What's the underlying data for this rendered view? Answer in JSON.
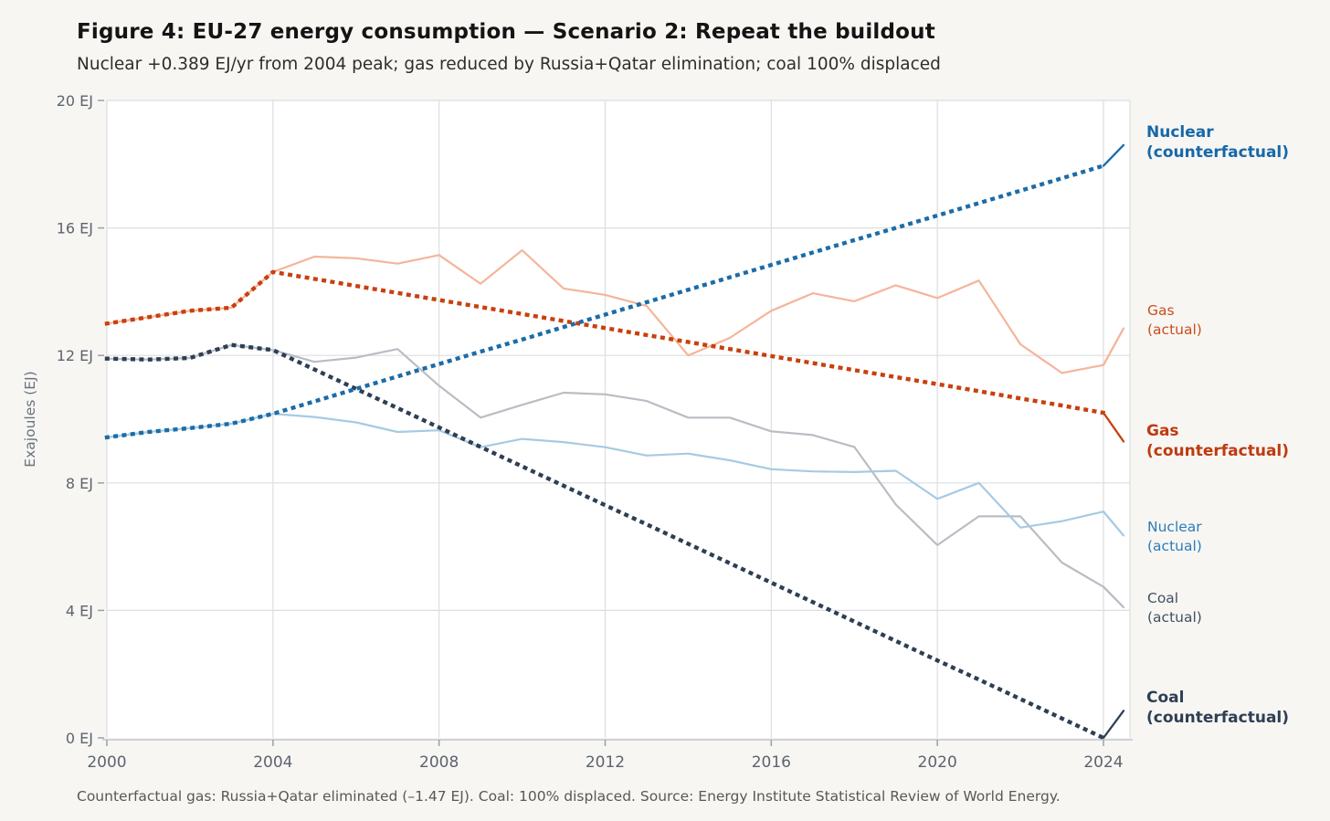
{
  "header": {
    "title": "Figure 4: EU-27 energy consumption — Scenario 2: Repeat the buildout",
    "subtitle": "Nuclear +0.389 EJ/yr from 2004 peak; gas reduced by Russia+Qatar elimination; coal 100% displaced"
  },
  "footer": {
    "note": "Counterfactual gas: Russia+Qatar eliminated (–1.47 EJ). Coal: 100% displaced. Source: Energy Institute Statistical Review of World Energy."
  },
  "chart_data": {
    "type": "line",
    "title": "Figure 4: EU-27 energy consumption — Scenario 2: Repeat the buildout",
    "subtitle": "Nuclear +0.389 EJ/yr from 2004 peak; gas reduced by Russia+Qatar elimination; coal 100% displaced",
    "xlabel": "",
    "ylabel": "Exajoules (EJ)",
    "xlim": [
      2000,
      2024.65
    ],
    "ylim": [
      0,
      20
    ],
    "grid": true,
    "legend_position": "right-margin-labels",
    "x": [
      2000,
      2001,
      2002,
      2003,
      2004,
      2005,
      2006,
      2007,
      2008,
      2009,
      2010,
      2011,
      2012,
      2013,
      2014,
      2015,
      2016,
      2017,
      2018,
      2019,
      2020,
      2021,
      2022,
      2023,
      2024
    ],
    "x_tick_labels": [
      "2000",
      "2004",
      "2008",
      "2012",
      "2016",
      "2020",
      "2024"
    ],
    "x_tick_values": [
      2000,
      2004,
      2008,
      2012,
      2016,
      2020,
      2024
    ],
    "y_tick_labels": [
      "0 EJ",
      "4 EJ",
      "8 EJ",
      "12 EJ",
      "16 EJ",
      "20 EJ"
    ],
    "y_tick_values": [
      0,
      4,
      8,
      12,
      16,
      20
    ],
    "series": [
      {
        "id": "gas-actual",
        "label_line1": "Gas",
        "label_line2": "(actual)",
        "style": "solid",
        "color": "#f4b59a",
        "label_color": "#c94e1d",
        "values": [
          13.0,
          13.2,
          13.4,
          13.5,
          14.62,
          15.1,
          15.05,
          14.88,
          15.15,
          14.25,
          15.3,
          14.1,
          13.9,
          13.55,
          12.0,
          12.55,
          13.4,
          13.95,
          13.7,
          14.2,
          13.8,
          14.35,
          12.35,
          11.45,
          11.7
        ],
        "leader_value": 12.85
      },
      {
        "id": "coal-actual",
        "label_line1": "Coal",
        "label_line2": "(actual)",
        "style": "solid",
        "color": "#b9bdc3",
        "label_color": "#425062",
        "values": [
          11.9,
          11.87,
          11.92,
          12.33,
          12.17,
          11.8,
          11.93,
          12.2,
          11.05,
          10.05,
          10.45,
          10.83,
          10.78,
          10.57,
          10.05,
          10.05,
          9.62,
          9.5,
          9.13,
          7.32,
          6.05,
          6.95,
          6.95,
          5.5,
          4.74
        ],
        "leader_value": 4.1
      },
      {
        "id": "nuclear-actual",
        "label_line1": "Nuclear",
        "label_line2": "(actual)",
        "style": "solid",
        "color": "#a7cae3",
        "label_color": "#2e7cb8",
        "values": [
          9.43,
          9.6,
          9.72,
          9.86,
          10.17,
          10.07,
          9.9,
          9.6,
          9.65,
          9.12,
          9.38,
          9.28,
          9.12,
          8.86,
          8.92,
          8.71,
          8.43,
          8.36,
          8.34,
          8.38,
          7.5,
          8.0,
          6.6,
          6.8,
          7.1
        ],
        "leader_value": 6.35
      },
      {
        "id": "gas-counterfactual",
        "label_line1": "Gas",
        "label_line2": "(counterfactual)",
        "style": "dotted",
        "color": "#c8400e",
        "label_color": "#bf3a0f",
        "values": [
          13.0,
          13.2,
          13.4,
          13.5,
          14.62,
          14.4,
          14.18,
          13.96,
          13.74,
          13.52,
          13.3,
          13.08,
          12.86,
          12.64,
          12.42,
          12.2,
          11.98,
          11.76,
          11.54,
          11.32,
          11.1,
          10.88,
          10.65,
          10.43,
          10.2
        ],
        "leader_value": 9.3
      },
      {
        "id": "coal-counterfactual",
        "label_line1": "Coal",
        "label_line2": "(counterfactual)",
        "style": "dotted",
        "color": "#2e3f54",
        "label_color": "#2e3f54",
        "values": [
          11.9,
          11.87,
          11.92,
          12.33,
          12.17,
          11.56,
          10.95,
          10.35,
          9.74,
          9.13,
          8.52,
          7.91,
          7.3,
          6.7,
          6.09,
          5.48,
          4.87,
          4.26,
          3.65,
          3.04,
          2.43,
          1.83,
          1.22,
          0.61,
          0.0
        ],
        "leader_value": 0.85
      },
      {
        "id": "nuclear-counterfactual",
        "label_line1": "Nuclear",
        "label_line2": "(counterfactual)",
        "style": "dotted",
        "color": "#1b6ca8",
        "label_color": "#1668a8",
        "values": [
          9.43,
          9.6,
          9.72,
          9.86,
          10.17,
          10.56,
          10.95,
          11.34,
          11.73,
          12.12,
          12.5,
          12.89,
          13.28,
          13.67,
          14.06,
          14.45,
          14.84,
          15.23,
          15.62,
          16.0,
          16.39,
          16.78,
          17.17,
          17.56,
          17.95
        ],
        "leader_value": 18.6
      }
    ]
  },
  "style": {
    "figure_bg": "#f7f6f3",
    "plot_bg": "#ffffff",
    "grid_color": "#dcdee0",
    "axis_line_color": "#c4c6c9",
    "tick_color": "#9aa0a8",
    "tick_label_color": "#5d646e",
    "axis_title_color": "#6a727c"
  }
}
